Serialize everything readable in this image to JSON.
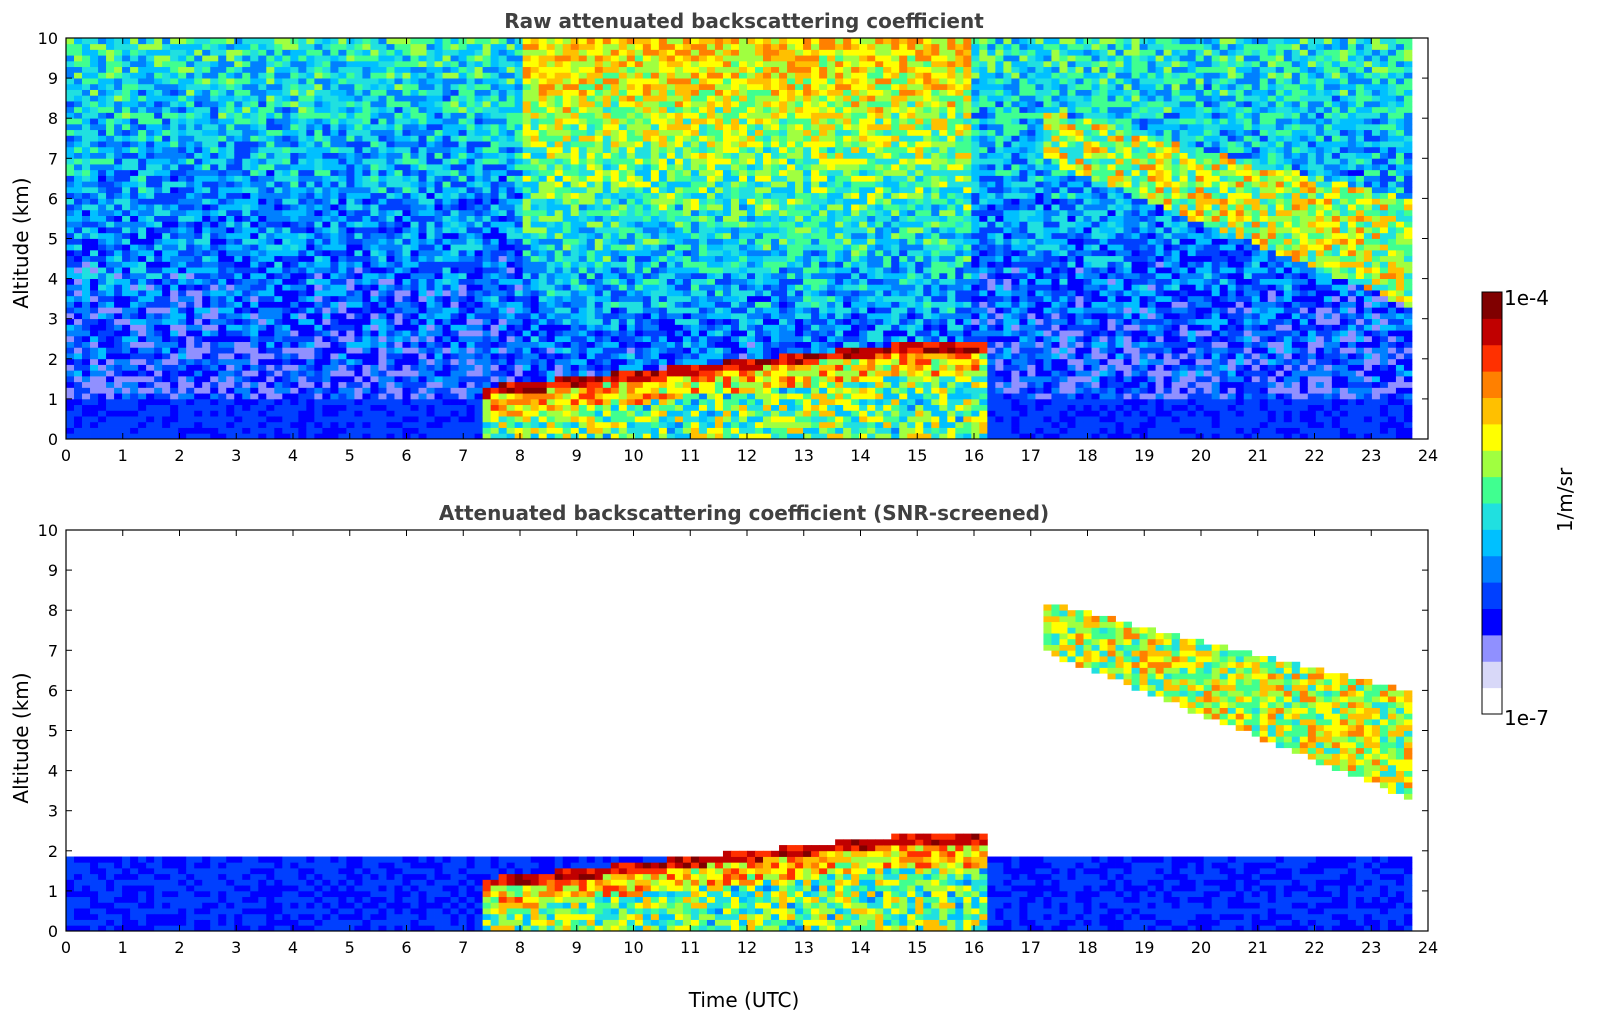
{
  "chart_data": [
    {
      "type": "heatmap",
      "title": "Raw attenuated backscattering coefficient",
      "xlabel": "",
      "ylabel": "Altitude (km)",
      "xlim": [
        0,
        24
      ],
      "ylim": [
        0,
        10
      ],
      "x_ticks": [
        "0",
        "1",
        "2",
        "3",
        "4",
        "5",
        "6",
        "7",
        "8",
        "9",
        "10",
        "11",
        "12",
        "13",
        "14",
        "15",
        "16",
        "17",
        "18",
        "19",
        "20",
        "21",
        "22",
        "23",
        "24"
      ],
      "y_ticks": [
        "0",
        "1",
        "2",
        "3",
        "4",
        "5",
        "6",
        "7",
        "8",
        "9",
        "10"
      ],
      "data_end_time": 23.7,
      "colormap": "jet",
      "color_scale": "log",
      "screened": false,
      "features": [
        {
          "kind": "boundary_layer",
          "t0": 0,
          "t1": 23.7,
          "top_km": 1.0
        },
        {
          "kind": "low_cloud",
          "t0": 7.3,
          "t1": 16.3,
          "base_km": 0.0,
          "top_km": 2.4
        },
        {
          "kind": "cirrus",
          "t0": 17.2,
          "t1": 23.7,
          "base_km": 3.3,
          "top_km": 8.3
        }
      ]
    },
    {
      "type": "heatmap",
      "title": "Attenuated backscattering coefficient (SNR-screened)",
      "xlabel": "Time (UTC)",
      "ylabel": "Altitude (km)",
      "xlim": [
        0,
        24
      ],
      "ylim": [
        0,
        10
      ],
      "x_ticks": [
        "0",
        "1",
        "2",
        "3",
        "4",
        "5",
        "6",
        "7",
        "8",
        "9",
        "10",
        "11",
        "12",
        "13",
        "14",
        "15",
        "16",
        "17",
        "18",
        "19",
        "20",
        "21",
        "22",
        "23",
        "24"
      ],
      "y_ticks": [
        "0",
        "1",
        "2",
        "3",
        "4",
        "5",
        "6",
        "7",
        "8",
        "9",
        "10"
      ],
      "data_end_time": 23.7,
      "colormap": "jet",
      "color_scale": "log",
      "screened": true,
      "features": [
        {
          "kind": "boundary_layer",
          "t0": 0,
          "t1": 23.7,
          "top_km": 1.9
        },
        {
          "kind": "low_cloud",
          "t0": 7.3,
          "t1": 16.3,
          "base_km": 0.0,
          "top_km": 2.4
        },
        {
          "kind": "cirrus",
          "t0": 17.2,
          "t1": 23.7,
          "base_km": 3.3,
          "top_km": 8.3
        }
      ]
    }
  ],
  "colorbar": {
    "label": "1/m/sr",
    "min_label": "1e-7",
    "max_label": "1e-4",
    "colors": [
      "#ffffff",
      "#d8d8f8",
      "#9090ff",
      "#0000ff",
      "#0040ff",
      "#0080ff",
      "#00c0ff",
      "#20e0e0",
      "#40ff90",
      "#a0ff40",
      "#ffff00",
      "#ffc000",
      "#ff8000",
      "#ff3000",
      "#c00000",
      "#800000"
    ]
  }
}
